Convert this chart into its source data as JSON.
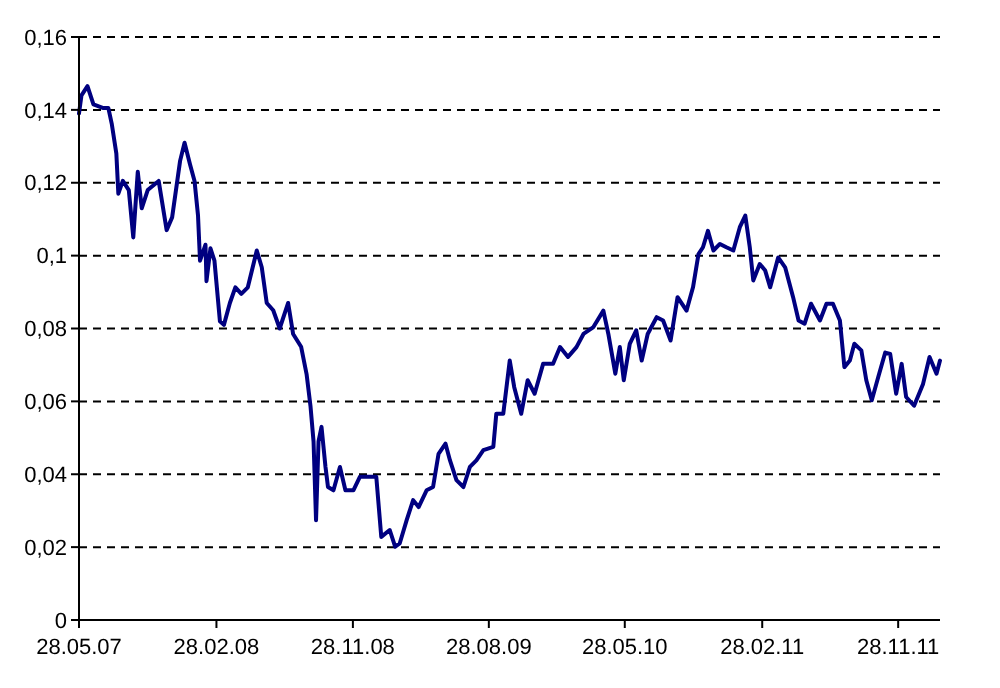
{
  "chart_data": {
    "type": "line",
    "grid": "y",
    "line_style": "solid",
    "xlim": [
      "2007-05-28",
      "2012-02-20"
    ],
    "xticks": [
      {
        "value": "2007-05-28",
        "label": "28.05.07"
      },
      {
        "value": "2008-02-28",
        "label": "28.02.08"
      },
      {
        "value": "2008-11-28",
        "label": "28.11.08"
      },
      {
        "value": "2009-08-28",
        "label": "28.08.09"
      },
      {
        "value": "2010-05-28",
        "label": "28.05.10"
      },
      {
        "value": "2011-02-28",
        "label": "28.02.11"
      },
      {
        "value": "2011-11-28",
        "label": "28.11.11"
      }
    ],
    "ylim": [
      0,
      0.16
    ],
    "yticks": [
      0,
      {
        "value": 0.02,
        "label": "0,02"
      },
      {
        "value": 0.04,
        "label": "0,04"
      },
      {
        "value": 0.06,
        "label": "0,06"
      },
      {
        "value": 0.08,
        "label": "0,08"
      },
      {
        "value": 0.1,
        "label": "0,1"
      },
      {
        "value": 0.12,
        "label": "0,12"
      },
      {
        "value": 0.14,
        "label": "0,14"
      },
      {
        "value": 0.16,
        "label": "0,16"
      }
    ],
    "x": [
      "2007-05-28",
      "2007-06-02",
      "2007-06-14",
      "2007-06-26",
      "2007-07-16",
      "2007-07-26",
      "2007-08-02",
      "2007-08-11",
      "2007-08-15",
      "2007-08-24",
      "2007-09-05",
      "2007-09-14",
      "2007-09-23",
      "2007-10-01",
      "2007-10-13",
      "2007-11-04",
      "2007-11-20",
      "2007-12-01",
      "2007-12-17",
      "2007-12-26",
      "2008-01-06",
      "2008-01-15",
      "2008-01-22",
      "2008-01-26",
      "2008-02-06",
      "2008-02-08",
      "2008-02-16",
      "2008-02-24",
      "2008-03-06",
      "2008-03-14",
      "2008-03-26",
      "2008-04-06",
      "2008-04-18",
      "2008-05-01",
      "2008-05-19",
      "2008-05-29",
      "2008-06-08",
      "2008-06-21",
      "2008-07-04",
      "2008-07-21",
      "2008-07-31",
      "2008-08-16",
      "2008-08-27",
      "2008-09-04",
      "2008-09-10",
      "2008-09-15",
      "2008-09-20",
      "2008-09-26",
      "2008-10-04",
      "2008-10-09",
      "2008-10-20",
      "2008-11-02",
      "2008-11-13",
      "2008-11-29",
      "2008-12-12",
      "2009-01-14",
      "2009-01-24",
      "2009-02-10",
      "2009-02-21",
      "2009-03-02",
      "2009-03-16",
      "2009-03-29",
      "2009-04-09",
      "2009-04-25",
      "2009-05-08",
      "2009-05-19",
      "2009-06-02",
      "2009-06-11",
      "2009-06-24",
      "2009-07-08",
      "2009-07-21",
      "2009-08-03",
      "2009-08-17",
      "2009-09-06",
      "2009-09-12",
      "2009-09-26",
      "2009-10-09",
      "2009-10-18",
      "2009-11-01",
      "2009-11-14",
      "2009-11-28",
      "2009-12-15",
      "2010-01-04",
      "2010-01-18",
      "2010-02-03",
      "2010-02-20",
      "2010-03-06",
      "2010-03-26",
      "2010-04-15",
      "2010-04-25",
      "2010-05-09",
      "2010-05-18",
      "2010-05-26",
      "2010-06-07",
      "2010-06-20",
      "2010-07-01",
      "2010-07-13",
      "2010-07-31",
      "2010-08-13",
      "2010-08-28",
      "2010-09-11",
      "2010-09-29",
      "2010-10-12",
      "2010-10-23",
      "2010-11-01",
      "2010-11-11",
      "2010-11-22",
      "2010-12-05",
      "2010-12-18",
      "2011-01-01",
      "2011-01-14",
      "2011-01-25",
      "2011-02-03",
      "2011-02-10",
      "2011-02-23",
      "2011-03-06",
      "2011-03-16",
      "2011-04-01",
      "2011-04-15",
      "2011-05-01",
      "2011-05-12",
      "2011-05-24",
      "2011-06-06",
      "2011-06-24",
      "2011-07-07",
      "2011-07-20",
      "2011-08-03",
      "2011-08-12",
      "2011-08-23",
      "2011-09-01",
      "2011-09-15",
      "2011-09-25",
      "2011-10-06",
      "2011-10-19",
      "2011-11-02",
      "2011-11-12",
      "2011-11-24",
      "2011-12-05",
      "2011-12-14",
      "2011-12-30",
      "2012-01-17",
      "2012-01-30",
      "2012-02-13",
      "2012-02-20"
    ],
    "series": [
      {
        "color": "#000080",
        "values": [
          0.139,
          0.144,
          0.1465,
          0.1415,
          0.1405,
          0.1405,
          0.136,
          0.128,
          0.117,
          0.1205,
          0.118,
          0.105,
          0.123,
          0.113,
          0.118,
          0.1205,
          0.107,
          0.1105,
          0.126,
          0.131,
          0.125,
          0.1205,
          0.111,
          0.0986,
          0.103,
          0.093,
          0.102,
          0.0986,
          0.082,
          0.081,
          0.087,
          0.0913,
          0.0895,
          0.0913,
          0.1014,
          0.0968,
          0.087,
          0.085,
          0.08,
          0.087,
          0.0785,
          0.075,
          0.0675,
          0.0585,
          0.049,
          0.0274,
          0.049,
          0.053,
          0.042,
          0.0365,
          0.0356,
          0.042,
          0.0356,
          0.0356,
          0.0393,
          0.0393,
          0.0228,
          0.0247,
          0.0201,
          0.021,
          0.0274,
          0.0329,
          0.031,
          0.0356,
          0.0365,
          0.0456,
          0.0484,
          0.0438,
          0.0384,
          0.0365,
          0.042,
          0.0438,
          0.0466,
          0.0475,
          0.0566,
          0.0566,
          0.0712,
          0.0639,
          0.0566,
          0.0658,
          0.0621,
          0.0703,
          0.0703,
          0.0749,
          0.0722,
          0.0749,
          0.0785,
          0.0804,
          0.0849,
          0.0785,
          0.0676,
          0.0749,
          0.0658,
          0.0758,
          0.0795,
          0.0712,
          0.0785,
          0.0831,
          0.0822,
          0.0767,
          0.0886,
          0.0849,
          0.0913,
          0.1004,
          0.1023,
          0.1068,
          0.1014,
          0.1032,
          0.1023,
          0.1014,
          0.1078,
          0.111,
          0.1023,
          0.0932,
          0.0977,
          0.0959,
          0.0913,
          0.0995,
          0.0968,
          0.0886,
          0.0822,
          0.0813,
          0.0868,
          0.0822,
          0.0868,
          0.0868,
          0.0822,
          0.0694,
          0.0712,
          0.0758,
          0.074,
          0.0658,
          0.0603,
          0.0667,
          0.0734,
          0.073,
          0.0621,
          0.0703,
          0.0612,
          0.0588,
          0.0648,
          0.0722,
          0.0676,
          0.0712
        ]
      }
    ]
  }
}
